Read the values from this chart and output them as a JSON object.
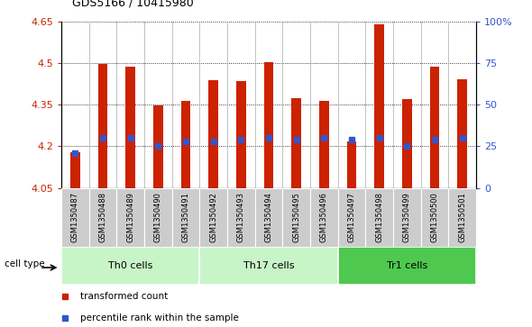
{
  "title": "GDS5166 / 10415980",
  "samples": [
    "GSM1350487",
    "GSM1350488",
    "GSM1350489",
    "GSM1350490",
    "GSM1350491",
    "GSM1350492",
    "GSM1350493",
    "GSM1350494",
    "GSM1350495",
    "GSM1350496",
    "GSM1350497",
    "GSM1350498",
    "GSM1350499",
    "GSM1350500",
    "GSM1350501"
  ],
  "bar_heights": [
    4.18,
    4.495,
    4.487,
    4.347,
    4.365,
    4.438,
    4.435,
    4.502,
    4.372,
    4.365,
    4.218,
    4.638,
    4.37,
    4.487,
    4.44
  ],
  "percentile_values": [
    21,
    30,
    30,
    25,
    28,
    28,
    29,
    30,
    29,
    30,
    29,
    30,
    25,
    29,
    30
  ],
  "bar_color": "#cc2200",
  "percentile_color": "#3355cc",
  "ylim_left": [
    4.05,
    4.65
  ],
  "ylim_right": [
    0,
    100
  ],
  "yticks_left": [
    4.05,
    4.2,
    4.35,
    4.5,
    4.65
  ],
  "ytick_labels_left": [
    "4.05",
    "4.2",
    "4.35",
    "4.5",
    "4.65"
  ],
  "yticks_right": [
    0,
    25,
    50,
    75,
    100
  ],
  "ytick_labels_right": [
    "0",
    "25",
    "50",
    "75",
    "100%"
  ],
  "groups": [
    {
      "label": "Th0 cells",
      "start": 0,
      "end": 5,
      "color": "#c8f5c8"
    },
    {
      "label": "Th17 cells",
      "start": 5,
      "end": 10,
      "color": "#c8f5c8"
    },
    {
      "label": "Tr1 cells",
      "start": 10,
      "end": 15,
      "color": "#4ec84e"
    }
  ],
  "bar_width": 0.35,
  "base_value": 4.05,
  "legend_items": [
    {
      "label": "transformed count",
      "color": "#cc2200",
      "marker": "s"
    },
    {
      "label": "percentile rank within the sample",
      "color": "#3355cc",
      "marker": "s"
    }
  ],
  "cell_type_label": "cell type",
  "bg_color": "#ffffff",
  "plot_bg": "#ffffff",
  "tick_label_bg": "#cccccc"
}
